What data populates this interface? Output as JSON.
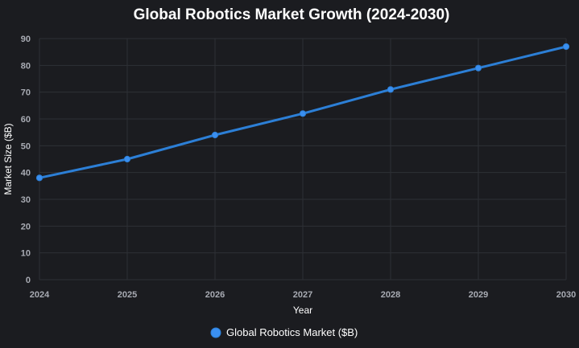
{
  "chart_data": {
    "type": "line",
    "title": "Global Robotics Market Growth (2024-2030)",
    "xlabel": "Year",
    "ylabel": "Market Size ($B)",
    "categories": [
      "2024",
      "2025",
      "2026",
      "2027",
      "2028",
      "2029",
      "2030"
    ],
    "series": [
      {
        "name": "Global Robotics Market ($B)",
        "values": [
          38,
          45,
          54,
          62,
          71,
          79,
          87
        ],
        "color": "#2c7fd6",
        "marker_color": "#3a8ff0"
      }
    ],
    "ylim": [
      0,
      90
    ],
    "yticks": [
      0,
      10,
      20,
      30,
      40,
      50,
      60,
      70,
      80,
      90
    ],
    "grid": true,
    "legend_position": "bottom-center"
  },
  "colors": {
    "background": "#1b1c20",
    "grid": "#2e3036",
    "title": "#ffffff",
    "tick": "#a8abb3"
  }
}
